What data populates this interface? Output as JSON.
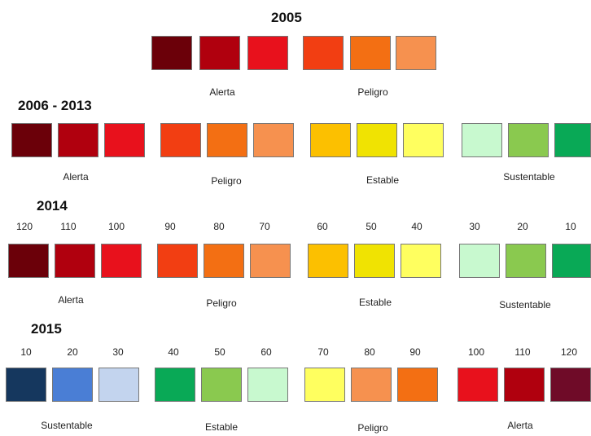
{
  "colors": {
    "dark_red": "#6b0009",
    "red_dark": "#b0000e",
    "red": "#e8111c",
    "red_orange": "#f23e12",
    "orange": "#f36f13",
    "light_orange": "#f6914f",
    "amber": "#fcc000",
    "yellow_dark": "#f0e302",
    "yellow_light": "#ffff5f",
    "mint": "#c8f9cf",
    "light_green": "#8ac94f",
    "green": "#09a956",
    "navy": "#15375e",
    "blue": "#4a7ed5",
    "light_blue": "#c3d4ee",
    "maroon": "#6f0b28"
  },
  "section_2005": {
    "title": "2005",
    "labels": {
      "alerta": "Alerta",
      "peligro": "Peligro"
    }
  },
  "section_2006_2013": {
    "title": "2006 - 2013",
    "labels": {
      "alerta": "Alerta",
      "peligro": "Peligro",
      "estable": "Estable",
      "sustentable": "Sustentable"
    }
  },
  "section_2014": {
    "title": "2014",
    "numbers": [
      "120",
      "110",
      "100",
      "90",
      "80",
      "70",
      "60",
      "50",
      "40",
      "30",
      "20",
      "10"
    ],
    "labels": {
      "alerta": "Alerta",
      "peligro": "Peligro",
      "estable": "Estable",
      "sustentable": "Sustentable"
    }
  },
  "section_2015": {
    "title": "2015",
    "numbers": [
      "10",
      "20",
      "30",
      "40",
      "50",
      "60",
      "70",
      "80",
      "90",
      "100",
      "110",
      "120"
    ],
    "labels": {
      "sustentable": "Sustentable",
      "estable": "Estable",
      "peligro": "Peligro",
      "alerta": "Alerta"
    }
  }
}
